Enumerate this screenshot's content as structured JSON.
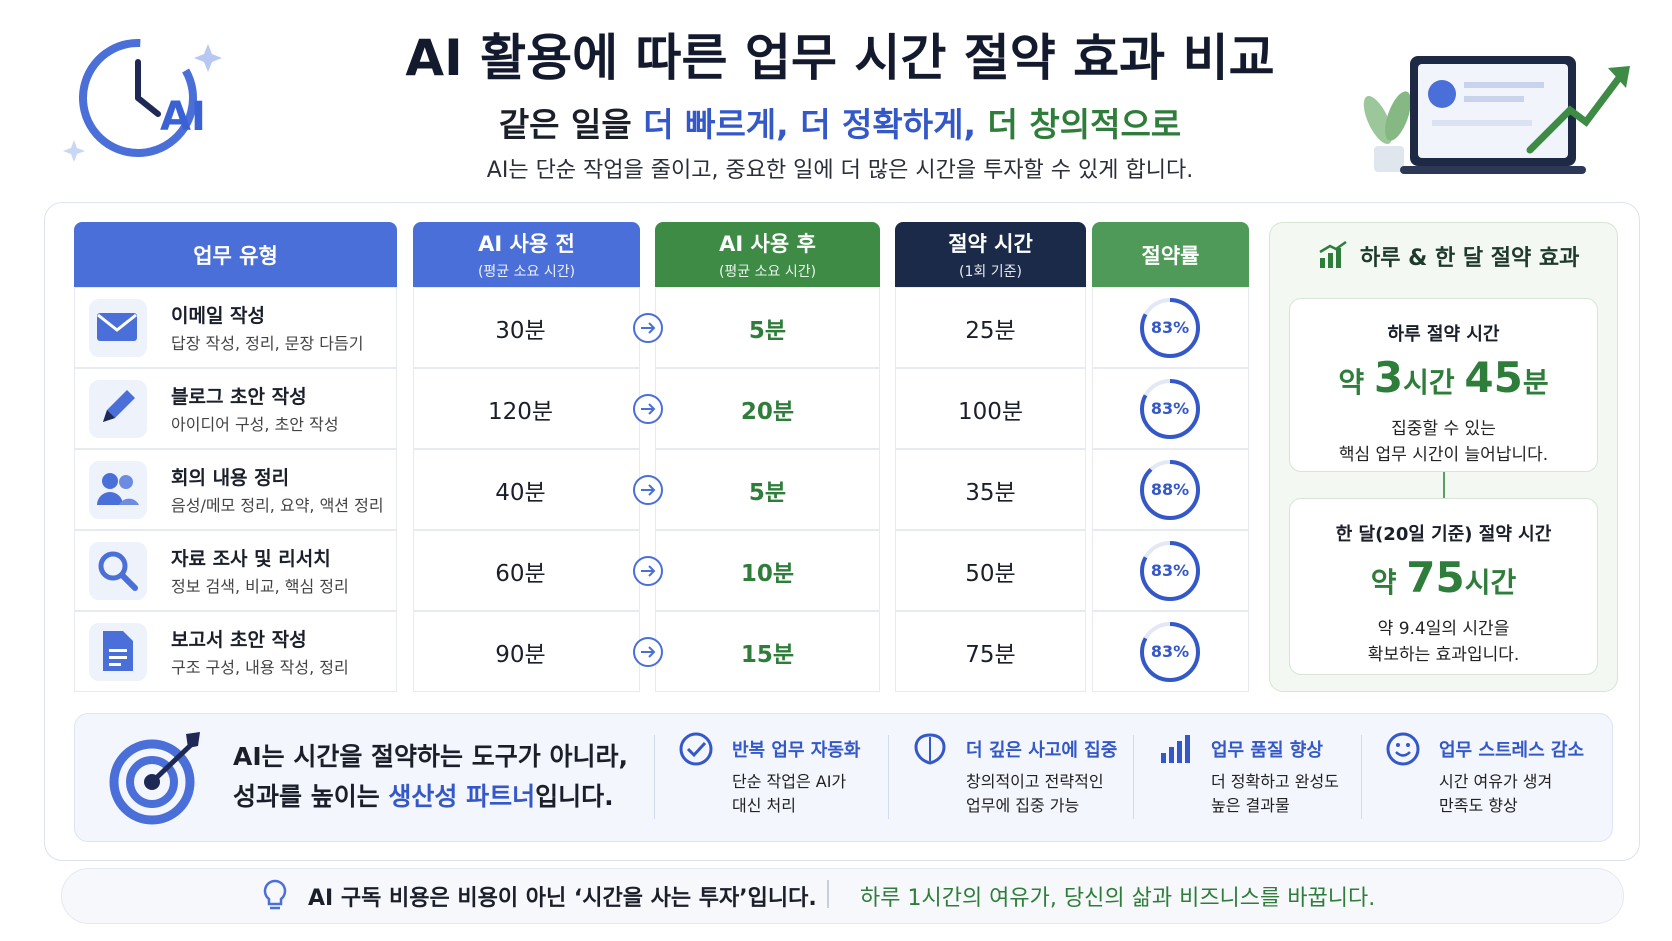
{
  "header": {
    "logo_text": "AI",
    "title": "AI 활용에 따른 업무 시간 절약 효과 비교",
    "subtitle": [
      {
        "text": "같은 일을 ",
        "style": "plain"
      },
      {
        "text": "더 빠르게,",
        "style": "blue"
      },
      {
        "text": " 더 정확하게,",
        "style": "blue"
      },
      {
        "text": " 더 창의적으로",
        "style": "green"
      }
    ],
    "description": "AI는 단순 작업을 줄이고, 중요한 일에 더 많은 시간을 투자할 수 있게 합니다."
  },
  "table": {
    "columns": [
      {
        "title": "업무 유형",
        "color": "#4a6fd8"
      },
      {
        "title": "AI 사용 전",
        "note": "(평균 소요 시간)",
        "color": "#4a6fd8"
      },
      {
        "title": "AI 사용 후",
        "note": "(평균 소요 시간)",
        "color": "#3d8b45"
      },
      {
        "title": "절약 시간",
        "note": "(1회 기준)",
        "color": "#1c2a4a"
      },
      {
        "title": "절약률",
        "color": "#4f9a58"
      }
    ],
    "rows": [
      {
        "task": "이메일 작성",
        "detail": "답장 작성, 정리, 문장 다듬기",
        "before": "30분",
        "after": "5분",
        "saved": "25분",
        "rate": "83%"
      },
      {
        "task": "블로그 초안 작성",
        "detail": "아이디어 구성, 초안 작성",
        "before": "120분",
        "after": "20분",
        "saved": "100분",
        "rate": "83%"
      },
      {
        "task": "회의 내용 정리",
        "detail": "음성/메모 정리, 요약, 액션 정리",
        "before": "40분",
        "after": "5분",
        "saved": "35분",
        "rate": "88%"
      },
      {
        "task": "자료 조사 및 리서치",
        "detail": "정보 검색, 비교, 핵심 정리",
        "before": "60분",
        "after": "10분",
        "saved": "50분",
        "rate": "83%"
      },
      {
        "task": "보고서 초안 작성",
        "detail": "구조 구성, 내용 작성, 정리",
        "before": "90분",
        "after": "15분",
        "saved": "75분",
        "rate": "83%"
      }
    ]
  },
  "summary": {
    "title": "하루 & 한 달 절약 효과",
    "daily": {
      "label": "하루 절약 시간",
      "amount": [
        {
          "text": "약 ",
          "big": false
        },
        {
          "text": "3",
          "big": true
        },
        {
          "text": "시간 ",
          "big": false
        },
        {
          "text": "45",
          "big": true
        },
        {
          "text": "분",
          "big": false
        }
      ],
      "note": [
        "집중할 수 있는",
        "핵심 업무 시간이 늘어납니다."
      ]
    },
    "monthly": {
      "label": "한 달(20일 기준) 절약 시간",
      "amount": [
        {
          "text": "약 ",
          "big": false
        },
        {
          "text": "75",
          "big": true
        },
        {
          "text": "시간",
          "big": false
        }
      ],
      "note": [
        "약 9.4일의 시간을",
        "확보하는 효과입니다."
      ]
    }
  },
  "banner": {
    "message": [
      [
        {
          "text": "AI는 시간을 절약하는 도구가 아니라,",
          "style": "plain"
        }
      ],
      [
        {
          "text": "성과를 높이는 ",
          "style": "plain"
        },
        {
          "text": "생산성 파트너",
          "style": "blue"
        },
        {
          "text": "입니다.",
          "style": "plain"
        }
      ]
    ],
    "benefits": [
      {
        "title": "반복 업무 자동화",
        "lines": [
          "단순 작업은 AI가",
          "대신 처리"
        ]
      },
      {
        "title": "더 깊은 사고에 집중",
        "lines": [
          "창의적이고 전략적인",
          "업무에 집중 가능"
        ]
      },
      {
        "title": "업무 품질 향상",
        "lines": [
          "더 정확하고 완성도",
          "높은 결과물"
        ]
      },
      {
        "title": "업무 스트레스 감소",
        "lines": [
          "시간 여유가 생겨",
          "만족도 향상"
        ]
      }
    ]
  },
  "footer": {
    "left": "AI 구독 비용은 비용이 아닌 ‘시간을 사는 투자’입니다.",
    "right": "하루 1시간의 여유가, 당신의 삶과 비즈니스를 바꿉니다."
  }
}
